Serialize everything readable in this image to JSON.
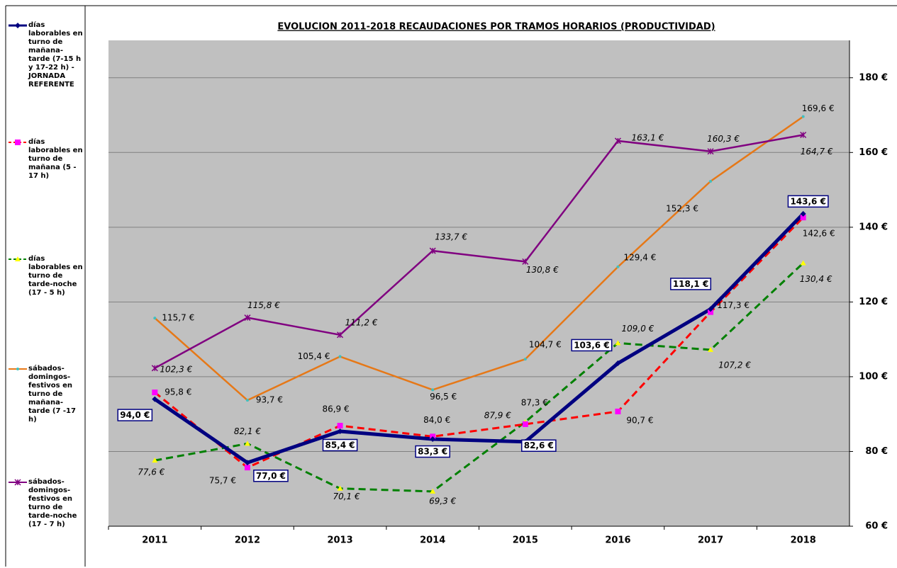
{
  "chart_data": {
    "type": "line",
    "title": "EVOLUCION 2011-2018 RECAUDACIONES POR TRAMOS HORARIOS (PRODUCTIVIDAD)",
    "categories": [
      "2011",
      "2012",
      "2013",
      "2014",
      "2015",
      "2016",
      "2017",
      "2018"
    ],
    "ylim": [
      60,
      190
    ],
    "yticks": [
      {
        "value": 60,
        "label": "60 €"
      },
      {
        "value": 80,
        "label": "80 €"
      },
      {
        "value": 100,
        "label": "100 €"
      },
      {
        "value": 120,
        "label": "120 €"
      },
      {
        "value": 140,
        "label": "140 €"
      },
      {
        "value": 160,
        "label": "160 €"
      },
      {
        "value": 180,
        "label": "180 €"
      }
    ],
    "grid": true,
    "series": [
      {
        "name": "días laborables en turno de mañana-tarde (7-15 h y 17-22 h) - JORNADA REFERENTE",
        "color": "#000080",
        "values": [
          94.0,
          77.0,
          85.4,
          83.3,
          82.6,
          103.6,
          118.1,
          143.6
        ],
        "value_labels": [
          "94,0 €",
          "77,0 €",
          "85,4 €",
          "83,3 €",
          "82,6 €",
          "103,6 €",
          "118,1 €",
          "143,6 €"
        ]
      },
      {
        "name": "días laborables en turno de mañana (5 - 17 h)",
        "color": "#ff0000",
        "values": [
          95.8,
          75.7,
          86.9,
          84.0,
          87.3,
          90.7,
          117.3,
          142.6
        ],
        "value_labels": [
          "95,8 €",
          "75,7 €",
          "86,9 €",
          "84,0 €",
          "87,3 €",
          "90,7 €",
          "117,3 €",
          "142,6 €"
        ]
      },
      {
        "name": "días laborables en turno de tarde-noche (17 - 5 h)",
        "color": "#008000",
        "values": [
          77.6,
          82.1,
          70.1,
          69.3,
          87.9,
          109.0,
          107.2,
          130.4
        ],
        "value_labels": [
          "77,6 €",
          "82,1 €",
          "70,1 €",
          "69,3 €",
          "87,9 €",
          "109,0 €",
          "107,2 €",
          "130,4 €"
        ]
      },
      {
        "name": "sábados-domingos-festivos en turno de mañana-tarde (7 -17 h)",
        "color": "#e67817",
        "values": [
          115.7,
          93.7,
          105.4,
          96.5,
          104.7,
          129.4,
          152.3,
          169.6
        ],
        "value_labels": [
          "115,7 €",
          "93,7 €",
          "105,4 €",
          "96,5 €",
          "104,7 €",
          "129,4 €",
          "152,3 €",
          "169,6 €"
        ]
      },
      {
        "name": "sábados-domingos-festivos en turno de tarde-noche (17 - 7 h)",
        "color": "#800080",
        "values": [
          102.3,
          115.8,
          111.2,
          133.7,
          130.8,
          163.1,
          160.3,
          164.7
        ],
        "value_labels": [
          "102,3 €",
          "115,8 €",
          "111,2 €",
          "133,7 €",
          "130,8 €",
          "163,1 €",
          "160,3 €",
          "164,7 €"
        ]
      }
    ]
  }
}
